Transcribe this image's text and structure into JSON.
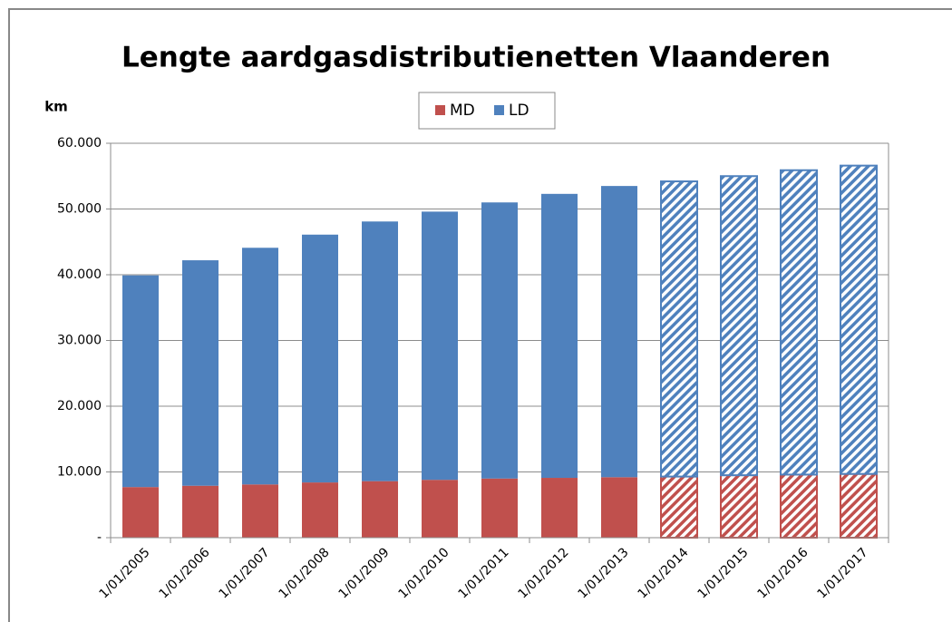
{
  "chart_data": {
    "type": "stacked_bar",
    "title": "Lengte aardgasdistributienetten Vlaanderen",
    "y_label": "km",
    "categories": [
      "1/01/2005",
      "1/01/2006",
      "1/01/2007",
      "1/01/2008",
      "1/01/2009",
      "1/01/2010",
      "1/01/2011",
      "1/01/2012",
      "1/01/2013",
      "1/01/2014",
      "1/01/2015",
      "1/01/2016",
      "1/01/2017"
    ],
    "hatched": [
      false,
      false,
      false,
      false,
      false,
      false,
      false,
      false,
      false,
      true,
      true,
      true,
      true
    ],
    "series": [
      {
        "name": "MD",
        "color": "#c0504d",
        "values": [
          7700,
          7900,
          8100,
          8400,
          8600,
          8800,
          9000,
          9100,
          9200,
          9300,
          9500,
          9600,
          9700
        ]
      },
      {
        "name": "LD",
        "color": "#4f81bd",
        "values": [
          32200,
          34300,
          36000,
          37700,
          39500,
          40800,
          42000,
          43200,
          44300,
          44900,
          45500,
          46300,
          46900
        ]
      }
    ],
    "ylim": [
      0,
      60000
    ],
    "yticks": [
      {
        "value": 0,
        "label": "-"
      },
      {
        "value": 10000,
        "label": "10.000"
      },
      {
        "value": 20000,
        "label": "20.000"
      },
      {
        "value": 30000,
        "label": "30.000"
      },
      {
        "value": 40000,
        "label": "40.000"
      },
      {
        "value": 50000,
        "label": "50.000"
      },
      {
        "value": 60000,
        "label": "60.000"
      }
    ],
    "grid": true,
    "legend": "top"
  }
}
